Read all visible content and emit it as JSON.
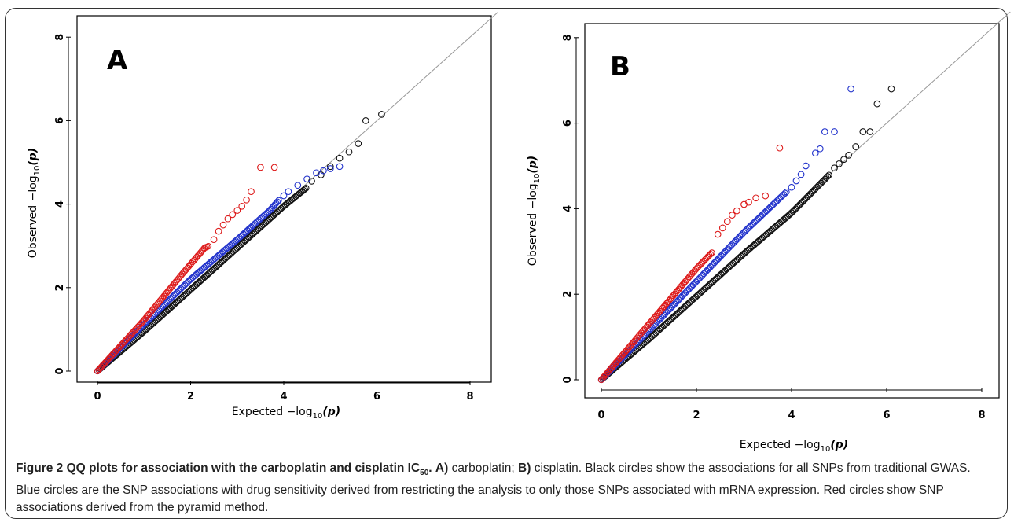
{
  "caption": {
    "fig_label": "Figure 2",
    "title_main": "QQ plots for association with the carboplatin and cisplatin IC",
    "title_sub": "50",
    "title_end": ".",
    "a_label": "A)",
    "a_text": " carboplatin; ",
    "b_label": "B)",
    "b_text": " cisplatin. Black circles show the associations for all SNPs from traditional GWAS. Blue circles are the SNP associations with drug sensitivity derived from restricting the analysis to only those SNPs associated with mRNA expression. Red circles show SNP associations derived from the pyramid method."
  },
  "colors": {
    "black_series": "#111111",
    "blue_series": "#2233cc",
    "red_series": "#dd1a1a",
    "diagonal": "#999999"
  },
  "chart_data": [
    {
      "type": "scatter",
      "panel_label": "A",
      "xlabel_main": "Expected  −log",
      "xlabel_sub": "10",
      "xlabel_end": "(p)",
      "ylabel_main": "Observed  −log",
      "ylabel_sub": "10",
      "ylabel_end": "(p)",
      "xlim": [
        0,
        8
      ],
      "ylim": [
        0,
        8
      ],
      "xticks": [
        "0",
        "2",
        "4",
        "6",
        "8"
      ],
      "yticks": [
        "0",
        "2",
        "4",
        "6",
        "8"
      ],
      "reference_line": "y = x",
      "series": [
        {
          "color": "black",
          "dense": [
            [
              0,
              0
            ],
            [
              1,
              0.95
            ],
            [
              2,
              1.95
            ],
            [
              3,
              2.95
            ],
            [
              4,
              3.95
            ],
            [
              4.5,
              4.4
            ]
          ],
          "sparse": [
            [
              4.6,
              4.55
            ],
            [
              4.8,
              4.7
            ],
            [
              5.0,
              4.9
            ],
            [
              5.2,
              5.1
            ],
            [
              5.4,
              5.25
            ],
            [
              5.6,
              5.45
            ],
            [
              5.76,
              6.0
            ],
            [
              6.1,
              6.15
            ]
          ]
        },
        {
          "color": "blue",
          "dense": [
            [
              0,
              0
            ],
            [
              1,
              1.12
            ],
            [
              2,
              2.2
            ],
            [
              3,
              3.15
            ],
            [
              3.7,
              3.85
            ],
            [
              3.9,
              4.1
            ]
          ],
          "sparse": [
            [
              4.0,
              4.2
            ],
            [
              4.1,
              4.3
            ],
            [
              4.3,
              4.45
            ],
            [
              4.5,
              4.6
            ],
            [
              4.7,
              4.75
            ],
            [
              4.85,
              4.8
            ],
            [
              5.0,
              4.85
            ],
            [
              5.2,
              4.9
            ]
          ]
        },
        {
          "color": "red",
          "dense": [
            [
              0,
              0
            ],
            [
              1,
              1.22
            ],
            [
              1.8,
              2.3
            ],
            [
              2.3,
              2.95
            ],
            [
              2.4,
              3.0
            ]
          ],
          "sparse": [
            [
              2.5,
              3.15
            ],
            [
              2.6,
              3.35
            ],
            [
              2.7,
              3.5
            ],
            [
              2.8,
              3.65
            ],
            [
              2.9,
              3.75
            ],
            [
              3.0,
              3.85
            ],
            [
              3.1,
              3.95
            ],
            [
              3.2,
              4.1
            ],
            [
              3.3,
              4.3
            ],
            [
              3.5,
              4.88
            ],
            [
              3.8,
              4.88
            ]
          ]
        }
      ]
    },
    {
      "type": "scatter",
      "panel_label": "B",
      "xlabel_main": "Expected  −log",
      "xlabel_sub": "10",
      "xlabel_end": "(p)",
      "ylabel_main": "Observed  −log",
      "ylabel_sub": "10",
      "ylabel_end": "(p)",
      "xlim": [
        0,
        8
      ],
      "ylim": [
        0,
        8
      ],
      "xticks": [
        "0",
        "2",
        "4",
        "6",
        "8"
      ],
      "yticks": [
        "0",
        "2",
        "4",
        "6",
        "8"
      ],
      "reference_line": "y = x",
      "series": [
        {
          "color": "black",
          "dense": [
            [
              0,
              0
            ],
            [
              1,
              0.95
            ],
            [
              2,
              1.95
            ],
            [
              3,
              2.95
            ],
            [
              4,
              3.9
            ],
            [
              4.8,
              4.8
            ]
          ],
          "sparse": [
            [
              4.9,
              4.95
            ],
            [
              5.0,
              5.05
            ],
            [
              5.1,
              5.15
            ],
            [
              5.2,
              5.25
            ],
            [
              5.35,
              5.45
            ],
            [
              5.5,
              5.8
            ],
            [
              5.65,
              5.8
            ],
            [
              5.8,
              6.45
            ],
            [
              6.1,
              6.8
            ]
          ]
        },
        {
          "color": "blue",
          "dense": [
            [
              0,
              0
            ],
            [
              1,
              1.15
            ],
            [
              2,
              2.3
            ],
            [
              3,
              3.45
            ],
            [
              3.9,
              4.4
            ]
          ],
          "sparse": [
            [
              4.0,
              4.5
            ],
            [
              4.1,
              4.65
            ],
            [
              4.2,
              4.8
            ],
            [
              4.3,
              5.0
            ],
            [
              4.5,
              5.3
            ],
            [
              4.6,
              5.4
            ],
            [
              4.7,
              5.8
            ],
            [
              4.9,
              5.8
            ],
            [
              5.25,
              6.8
            ]
          ]
        },
        {
          "color": "red",
          "dense": [
            [
              0,
              0
            ],
            [
              1,
              1.3
            ],
            [
              2,
              2.6
            ],
            [
              2.35,
              3.0
            ]
          ],
          "sparse": [
            [
              2.45,
              3.4
            ],
            [
              2.55,
              3.55
            ],
            [
              2.65,
              3.7
            ],
            [
              2.75,
              3.85
            ],
            [
              2.85,
              3.95
            ],
            [
              3.0,
              4.1
            ],
            [
              3.1,
              4.15
            ],
            [
              3.25,
              4.25
            ],
            [
              3.45,
              4.3
            ],
            [
              3.75,
              5.42
            ]
          ]
        }
      ]
    }
  ]
}
